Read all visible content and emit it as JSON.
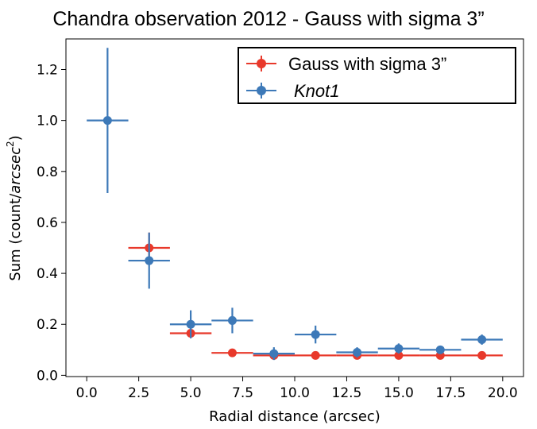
{
  "chart_data": {
    "type": "scatter",
    "title": "Chandra observation 2012 - Gauss with sigma 3”",
    "xlabel": "Radial distance (arcsec)",
    "ylabel_prefix": "Sum (count/",
    "ylabel_unit": "arcsec",
    "ylabel_exp": "2",
    "ylabel_suffix": ")",
    "xlim": [
      -1.0,
      21.0
    ],
    "ylim": [
      -0.005,
      1.32
    ],
    "xticks": [
      0.0,
      2.5,
      5.0,
      7.5,
      10.0,
      12.5,
      15.0,
      17.5,
      20.0
    ],
    "xtick_labels": [
      "0.0",
      "2.5",
      "5.0",
      "7.5",
      "10.0",
      "12.5",
      "15.0",
      "17.5",
      "20.0"
    ],
    "yticks": [
      0.0,
      0.2,
      0.4,
      0.6,
      0.8,
      1.0,
      1.2
    ],
    "ytick_labels": [
      "0.0",
      "0.2",
      "0.4",
      "0.6",
      "0.8",
      "1.0",
      "1.2"
    ],
    "legend_position": "top-right",
    "series": [
      {
        "name": "Gauss with sigma 3”",
        "italic": false,
        "color": "#e8392b",
        "x": [
          3,
          5,
          7,
          9,
          11,
          13,
          15,
          17,
          19
        ],
        "xerr": [
          1,
          1,
          1,
          1,
          1,
          1,
          1,
          1,
          1
        ],
        "y": [
          0.5,
          0.165,
          0.088,
          0.078,
          0.078,
          0.078,
          0.078,
          0.078,
          0.078
        ],
        "yerr": [
          0.06,
          0.012,
          0.006,
          0.004,
          0.004,
          0.004,
          0.004,
          0.004,
          0.004
        ]
      },
      {
        "name": "Knot1",
        "italic": true,
        "color": "#3d79b8",
        "x": [
          1,
          3,
          5,
          7,
          9,
          11,
          13,
          15,
          17,
          19
        ],
        "xerr": [
          1,
          1,
          1,
          1,
          1,
          1,
          1,
          1,
          1,
          1
        ],
        "y": [
          1.0,
          0.45,
          0.2,
          0.215,
          0.085,
          0.16,
          0.09,
          0.105,
          0.1,
          0.14
        ],
        "yerr": [
          0.285,
          0.11,
          0.055,
          0.05,
          0.025,
          0.035,
          0.02,
          0.02,
          0.015,
          0.02
        ]
      }
    ]
  }
}
